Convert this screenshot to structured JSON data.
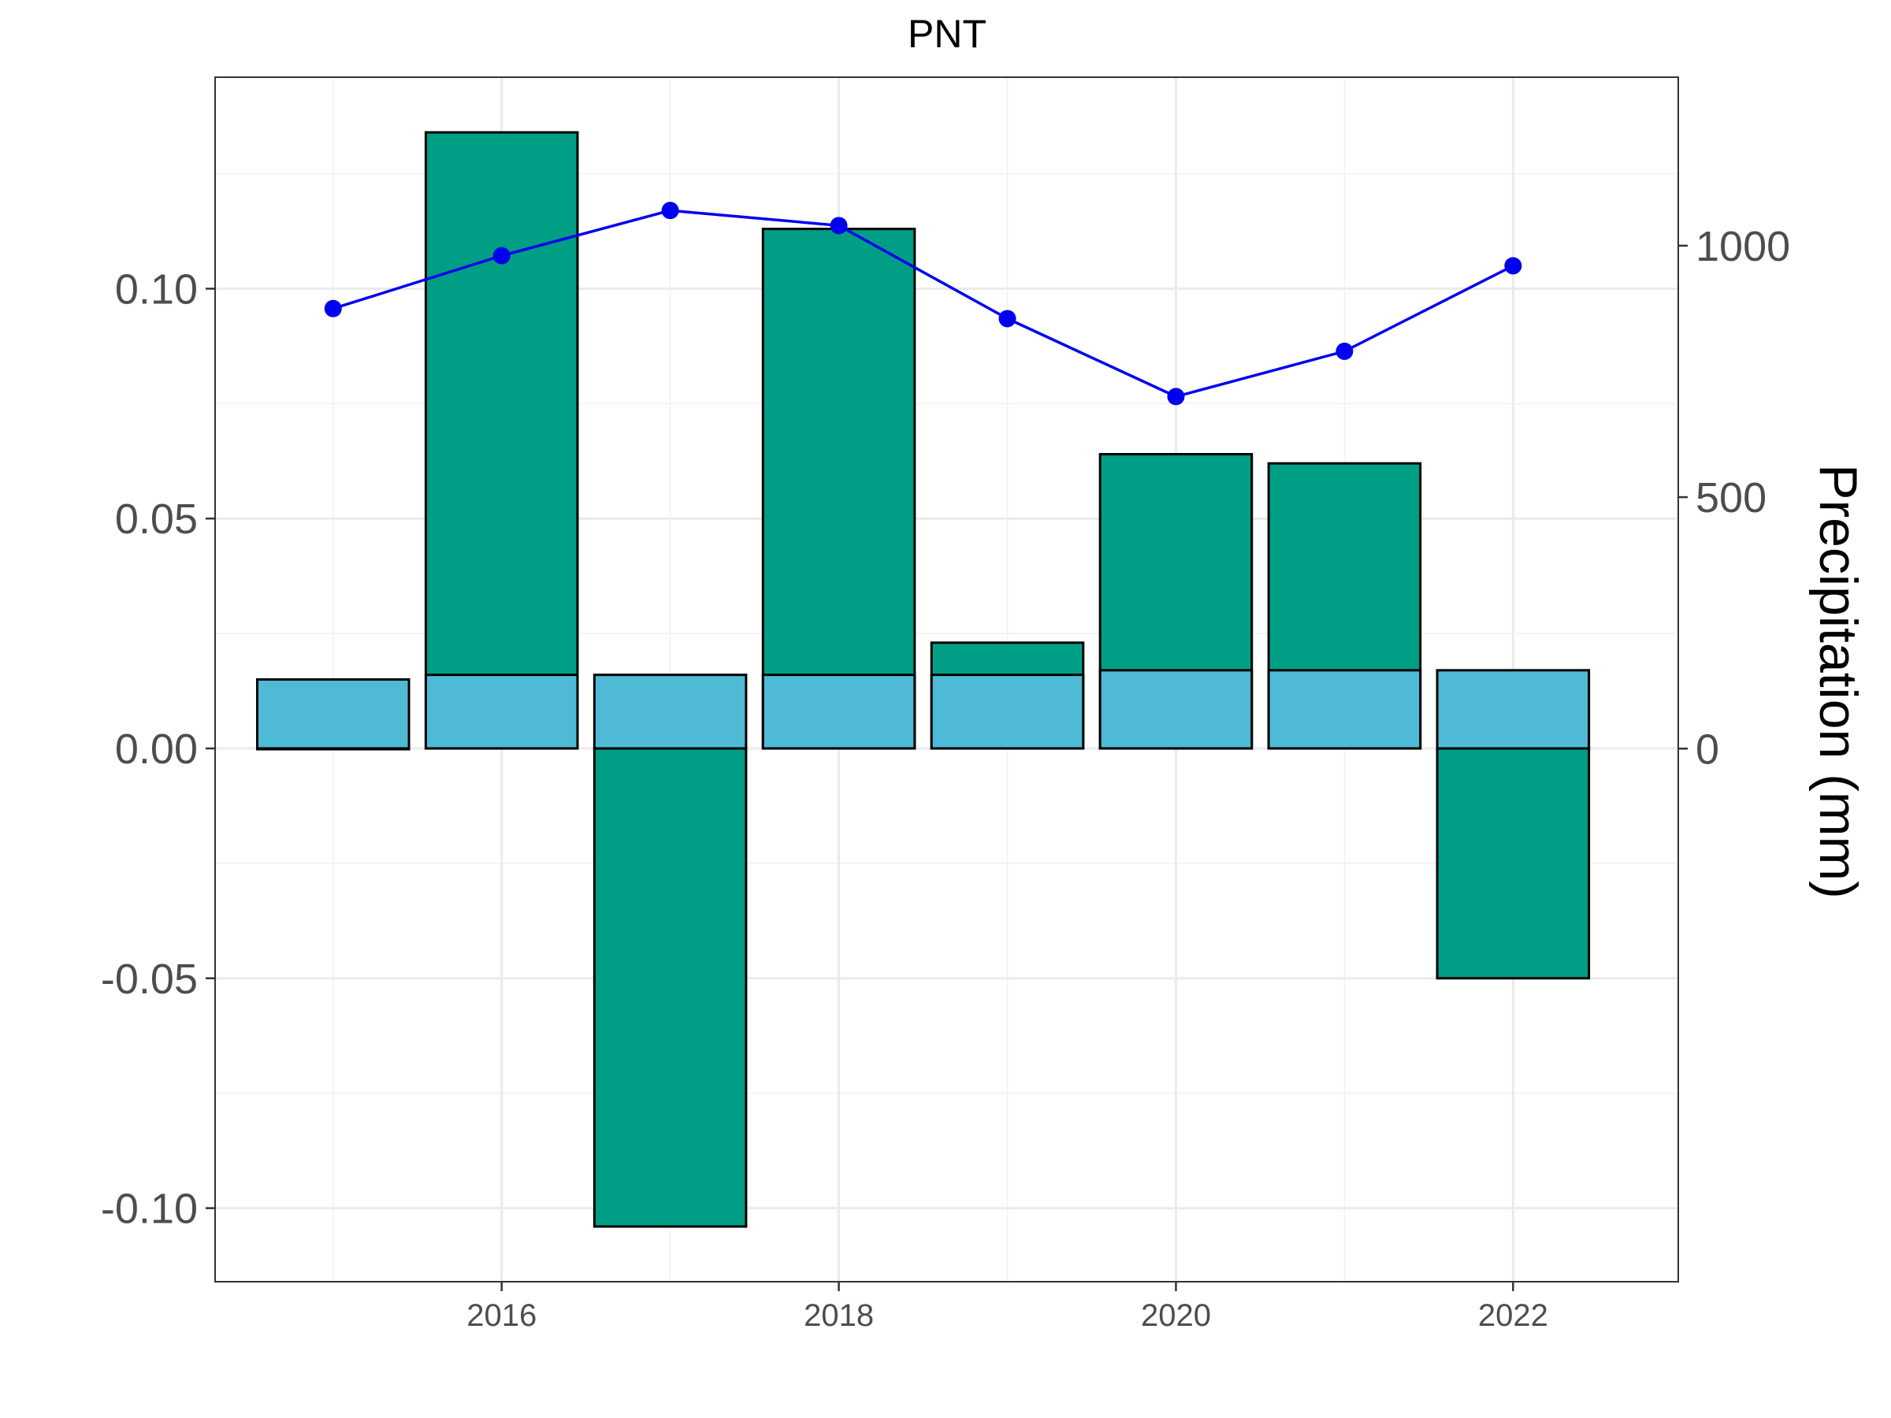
{
  "chart_data": {
    "type": "bar",
    "title": "PNT",
    "xlabel": "",
    "ylabel": "",
    "y2label": "Precipitation (mm)",
    "x": [
      2015,
      2016,
      2017,
      2018,
      2019,
      2020,
      2021,
      2022
    ],
    "xlim": [
      2014.3,
      2022.98
    ],
    "ylim": [
      -0.116,
      0.146
    ],
    "y2lim": [
      -1060,
      1335
    ],
    "y_ticks": [
      "-0.10",
      "-0.05",
      "0.00",
      "0.05",
      "0.10"
    ],
    "y_tick_values": [
      -0.1,
      -0.05,
      0.0,
      0.05,
      0.1
    ],
    "y2_ticks": [
      "0",
      "500",
      "1000"
    ],
    "y2_tick_values": [
      0,
      500,
      1000
    ],
    "x_ticks": [
      "2016",
      "2018",
      "2020",
      "2022"
    ],
    "x_tick_values": [
      2016,
      2018,
      2020,
      2022
    ],
    "grid": true,
    "series": [
      {
        "kind": "bar",
        "color": "#009E84",
        "values": [
          0.0,
          0.134,
          -0.104,
          0.113,
          0.023,
          0.064,
          0.062,
          -0.05
        ]
      },
      {
        "kind": "bar",
        "color": "#4EBAD6",
        "values": [
          0.015,
          0.016,
          0.016,
          0.016,
          0.016,
          0.017,
          0.017,
          0.017
        ]
      },
      {
        "kind": "line",
        "axis": "right",
        "color": "#0000EE",
        "values": [
          875,
          980,
          1070,
          1040,
          855,
          700,
          790,
          960
        ]
      }
    ]
  }
}
